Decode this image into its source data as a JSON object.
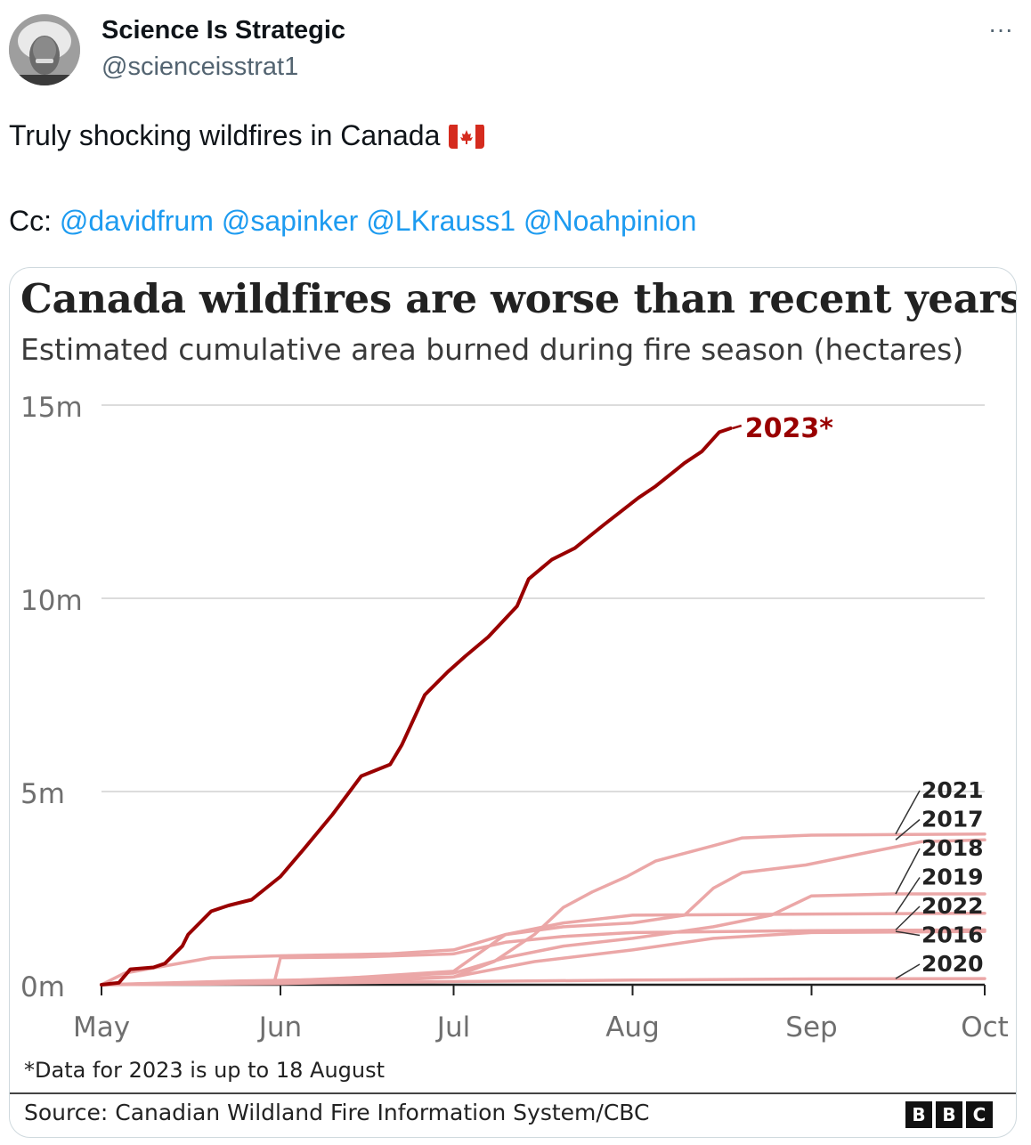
{
  "tweet": {
    "author_name": "Science Is Strategic",
    "author_handle": "@scienceisstrat1",
    "more_label": "···",
    "text": "Truly shocking wildfires in Canada",
    "flag_icon": "canada-flag-icon",
    "cc_prefix": "Cc:",
    "mentions": [
      "@davidfrum",
      "@sapinker",
      "@LKrauss1",
      "@Noahpinion"
    ]
  },
  "media": {
    "footnote": "*Data for 2023 is up to 18 August",
    "source": "Source: Canadian Wildland Fire Information System/CBC",
    "logo_letters": [
      "B",
      "B",
      "C"
    ]
  },
  "chart_data": {
    "type": "line",
    "title": "Canada wildfires are worse than recent years",
    "subtitle": "Estimated cumulative area burned during fire season (hectares)",
    "x_unit": "date",
    "x_ticks": [
      "May",
      "Jun",
      "Jul",
      "Aug",
      "Sep",
      "Oct"
    ],
    "xlim": [
      "2023-05-01",
      "2023-10-01"
    ],
    "y_ticks": [
      "0m",
      "5m",
      "10m",
      "15m"
    ],
    "ylim": [
      0,
      15000000
    ],
    "grid": true,
    "highlight_color": "#990000",
    "other_color": "#eba7a7",
    "series": [
      {
        "name": "2023*",
        "highlight": true,
        "points": [
          [
            "2023-05-01",
            0
          ],
          [
            "2023-05-04",
            50000
          ],
          [
            "2023-05-06",
            400000
          ],
          [
            "2023-05-10",
            450000
          ],
          [
            "2023-05-12",
            550000
          ],
          [
            "2023-05-15",
            1000000
          ],
          [
            "2023-05-16",
            1300000
          ],
          [
            "2023-05-18",
            1600000
          ],
          [
            "2023-05-20",
            1900000
          ],
          [
            "2023-05-23",
            2050000
          ],
          [
            "2023-05-27",
            2200000
          ],
          [
            "2023-06-01",
            2800000
          ],
          [
            "2023-06-05",
            3500000
          ],
          [
            "2023-06-10",
            4400000
          ],
          [
            "2023-06-13",
            5000000
          ],
          [
            "2023-06-15",
            5400000
          ],
          [
            "2023-06-20",
            5700000
          ],
          [
            "2023-06-22",
            6200000
          ],
          [
            "2023-06-26",
            7500000
          ],
          [
            "2023-06-30",
            8100000
          ],
          [
            "2023-07-03",
            8500000
          ],
          [
            "2023-07-07",
            9000000
          ],
          [
            "2023-07-12",
            9800000
          ],
          [
            "2023-07-14",
            10500000
          ],
          [
            "2023-07-18",
            11000000
          ],
          [
            "2023-07-22",
            11300000
          ],
          [
            "2023-07-27",
            11900000
          ],
          [
            "2023-08-02",
            12600000
          ],
          [
            "2023-08-05",
            12900000
          ],
          [
            "2023-08-10",
            13500000
          ],
          [
            "2023-08-13",
            13800000
          ],
          [
            "2023-08-16",
            14300000
          ],
          [
            "2023-08-18",
            14400000
          ]
        ]
      },
      {
        "name": "2021",
        "points": [
          [
            "2023-05-01",
            0
          ],
          [
            "2023-06-01",
            30000
          ],
          [
            "2023-06-15",
            80000
          ],
          [
            "2023-07-01",
            200000
          ],
          [
            "2023-07-08",
            600000
          ],
          [
            "2023-07-15",
            1300000
          ],
          [
            "2023-07-20",
            2000000
          ],
          [
            "2023-07-25",
            2400000
          ],
          [
            "2023-07-31",
            2800000
          ],
          [
            "2023-08-05",
            3200000
          ],
          [
            "2023-08-10",
            3400000
          ],
          [
            "2023-08-15",
            3600000
          ],
          [
            "2023-08-20",
            3800000
          ],
          [
            "2023-09-01",
            3870000
          ],
          [
            "2023-10-01",
            3900000
          ]
        ]
      },
      {
        "name": "2017",
        "points": [
          [
            "2023-05-01",
            0
          ],
          [
            "2023-06-01",
            60000
          ],
          [
            "2023-07-01",
            350000
          ],
          [
            "2023-07-10",
            1300000
          ],
          [
            "2023-07-20",
            1500000
          ],
          [
            "2023-08-01",
            1600000
          ],
          [
            "2023-08-10",
            1800000
          ],
          [
            "2023-08-15",
            2500000
          ],
          [
            "2023-08-20",
            2900000
          ],
          [
            "2023-08-31",
            3100000
          ],
          [
            "2023-09-10",
            3400000
          ],
          [
            "2023-09-20",
            3700000
          ],
          [
            "2023-10-01",
            3750000
          ]
        ]
      },
      {
        "name": "2018",
        "points": [
          [
            "2023-05-01",
            0
          ],
          [
            "2023-06-01",
            100000
          ],
          [
            "2023-07-01",
            300000
          ],
          [
            "2023-07-10",
            700000
          ],
          [
            "2023-07-20",
            1000000
          ],
          [
            "2023-08-01",
            1200000
          ],
          [
            "2023-08-15",
            1500000
          ],
          [
            "2023-08-25",
            1800000
          ],
          [
            "2023-09-01",
            2300000
          ],
          [
            "2023-09-15",
            2350000
          ],
          [
            "2023-10-01",
            2350000
          ]
        ]
      },
      {
        "name": "2019",
        "points": [
          [
            "2023-05-01",
            0
          ],
          [
            "2023-05-05",
            300000
          ],
          [
            "2023-05-20",
            700000
          ],
          [
            "2023-06-01",
            750000
          ],
          [
            "2023-06-20",
            800000
          ],
          [
            "2023-07-01",
            900000
          ],
          [
            "2023-07-10",
            1300000
          ],
          [
            "2023-07-20",
            1600000
          ],
          [
            "2023-08-01",
            1800000
          ],
          [
            "2023-09-01",
            1830000
          ],
          [
            "2023-10-01",
            1850000
          ]
        ]
      },
      {
        "name": "2022",
        "points": [
          [
            "2023-05-01",
            0
          ],
          [
            "2023-05-31",
            100000
          ],
          [
            "2023-06-01",
            700000
          ],
          [
            "2023-06-15",
            720000
          ],
          [
            "2023-07-01",
            800000
          ],
          [
            "2023-07-10",
            1100000
          ],
          [
            "2023-07-20",
            1250000
          ],
          [
            "2023-08-01",
            1350000
          ],
          [
            "2023-09-01",
            1400000
          ],
          [
            "2023-10-01",
            1420000
          ]
        ]
      },
      {
        "name": "2016",
        "points": [
          [
            "2023-05-01",
            0
          ],
          [
            "2023-05-25",
            100000
          ],
          [
            "2023-06-15",
            150000
          ],
          [
            "2023-07-01",
            200000
          ],
          [
            "2023-07-15",
            600000
          ],
          [
            "2023-08-01",
            900000
          ],
          [
            "2023-08-15",
            1200000
          ],
          [
            "2023-09-01",
            1350000
          ],
          [
            "2023-10-01",
            1380000
          ]
        ]
      },
      {
        "name": "2020",
        "points": [
          [
            "2023-05-01",
            0
          ],
          [
            "2023-06-01",
            40000
          ],
          [
            "2023-07-01",
            80000
          ],
          [
            "2023-08-01",
            120000
          ],
          [
            "2023-09-01",
            150000
          ],
          [
            "2023-10-01",
            160000
          ]
        ]
      }
    ]
  }
}
